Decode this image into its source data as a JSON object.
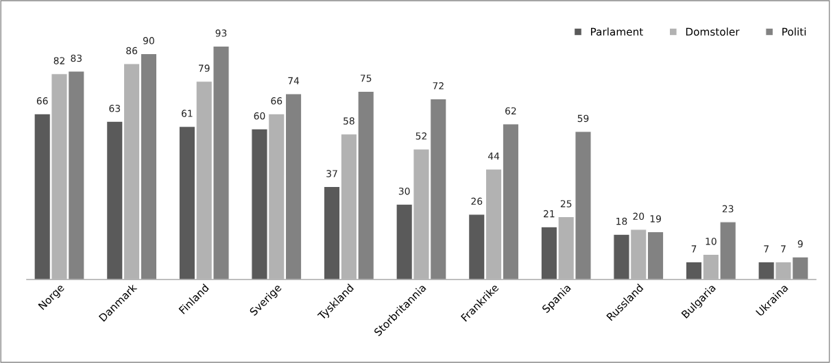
{
  "chart_data": {
    "type": "bar",
    "categories": [
      "Norge",
      "Danmark",
      "Finland",
      "Sverige",
      "Tyskland",
      "Storbritannia",
      "Frankrike",
      "Spania",
      "Russland",
      "Bulgaria",
      "Ukraina"
    ],
    "series": [
      {
        "name": "Parlament",
        "color": "#5a5a5a",
        "values": [
          66,
          63,
          61,
          60,
          37,
          30,
          26,
          21,
          18,
          7,
          7
        ]
      },
      {
        "name": "Domstoler",
        "color": "#b2b2b2",
        "values": [
          82,
          86,
          79,
          66,
          58,
          52,
          44,
          25,
          20,
          10,
          7
        ]
      },
      {
        "name": "Politi",
        "color": "#828282",
        "values": [
          83,
          90,
          93,
          74,
          75,
          72,
          62,
          59,
          19,
          23,
          9
        ]
      }
    ],
    "data_labels": true,
    "legend": "top right",
    "grid": false,
    "tick_labels": "x"
  }
}
